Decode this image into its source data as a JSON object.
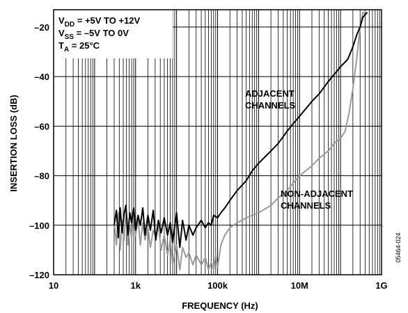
{
  "chart_data": {
    "type": "line",
    "xlabel": "FREQUENCY (Hz)",
    "ylabel": "INSERTION LOSS (dB)",
    "x_scale": "log",
    "xlim": [
      10,
      1000000000
    ],
    "ylim": [
      -120,
      -13
    ],
    "x_ticks": [
      {
        "value": 10,
        "label": "10"
      },
      {
        "value": 1000,
        "label": "1k"
      },
      {
        "value": 100000,
        "label": "100k"
      },
      {
        "value": 10000000,
        "label": "10M"
      },
      {
        "value": 1000000000,
        "label": "1G"
      }
    ],
    "y_ticks": [
      {
        "value": -20,
        "label": "–20"
      },
      {
        "value": -40,
        "label": "–40"
      },
      {
        "value": -60,
        "label": "–60"
      },
      {
        "value": -80,
        "label": "–80"
      },
      {
        "value": -100,
        "label": "–100"
      },
      {
        "value": -120,
        "label": "–120"
      }
    ],
    "grid": true,
    "conditions": [
      {
        "main": "V",
        "sub": "DD",
        "rest": " = +5V TO +12V"
      },
      {
        "main": "V",
        "sub": "SS",
        "rest": " = –5V TO 0V"
      },
      {
        "main": "T",
        "sub": "A",
        "rest": " = 25°C"
      }
    ],
    "figure_id": "05464-024",
    "series": [
      {
        "name": "ADJACENT CHANNELS",
        "color": "#000000",
        "x": [
          300,
          340,
          380,
          420,
          470,
          520,
          580,
          650,
          720,
          800,
          900,
          1000,
          1150,
          1300,
          1500,
          1700,
          2000,
          2300,
          2700,
          3100,
          3600,
          4200,
          5000,
          6000,
          7000,
          8000,
          10000,
          12000,
          14000,
          17000,
          20000,
          25000,
          30000,
          40000,
          50000,
          60000,
          70000,
          80000,
          100000,
          120000,
          150000,
          200000,
          300000,
          500000,
          700000,
          1000000,
          2000000,
          3000000,
          5000000,
          7000000,
          10000000,
          20000000,
          30000000,
          50000000,
          80000000,
          100000000,
          150000000,
          200000000,
          250000000,
          300000000,
          350000000,
          400000000,
          450000000
        ],
        "y": [
          -100,
          -94,
          -105,
          -93,
          -103,
          -96,
          -92,
          -104,
          -95,
          -99,
          -93,
          -102,
          -96,
          -100,
          -93,
          -104,
          -96,
          -102,
          -94,
          -106,
          -98,
          -103,
          -97,
          -104,
          -99,
          -107,
          -95,
          -109,
          -98,
          -106,
          -100,
          -104,
          -101,
          -98,
          -101,
          -99,
          -100,
          -96,
          -97,
          -95,
          -93,
          -90,
          -86,
          -82,
          -78,
          -75,
          -70,
          -67,
          -62,
          -59,
          -56,
          -50,
          -47,
          -42,
          -38,
          -36,
          -33,
          -28,
          -23,
          -20,
          -16,
          -15,
          -14
        ]
      },
      {
        "name": "NON-ADJACENT CHANNELS",
        "color": "#9a9a9a",
        "x": [
          300,
          340,
          380,
          420,
          470,
          520,
          580,
          650,
          720,
          800,
          900,
          1000,
          1150,
          1300,
          1500,
          1700,
          2000,
          2300,
          2700,
          3100,
          3600,
          4200,
          5000,
          6000,
          7000,
          8000,
          10000,
          12000,
          14000,
          17000,
          20000,
          25000,
          30000,
          40000,
          50000,
          60000,
          70000,
          80000,
          90000,
          100000,
          120000,
          150000,
          200000,
          250000,
          300000,
          400000,
          500000,
          700000,
          1000000,
          2000000,
          3000000,
          5000000,
          7000000,
          10000000,
          20000000,
          30000000,
          50000000,
          70000000,
          100000000,
          130000000,
          160000000,
          200000000,
          250000000,
          300000000,
          350000000,
          400000000
        ],
        "y": [
          -98,
          -108,
          -95,
          -110,
          -98,
          -106,
          -96,
          -108,
          -100,
          -105,
          -95,
          -104,
          -97,
          -108,
          -99,
          -106,
          -101,
          -109,
          -102,
          -105,
          -100,
          -110,
          -104,
          -112,
          -106,
          -116,
          -108,
          -118,
          -109,
          -113,
          -111,
          -116,
          -112,
          -116,
          -113,
          -118,
          -115,
          -118,
          -112,
          -117,
          -108,
          -104,
          -101,
          -100,
          -99,
          -98,
          -97,
          -96,
          -95,
          -92,
          -89,
          -86,
          -83,
          -80,
          -76,
          -73,
          -70,
          -67,
          -65,
          -62,
          -55,
          -45,
          -32,
          -20,
          -14,
          -15
        ]
      }
    ],
    "annotations": [
      {
        "lines": [
          "ADJACENT",
          "CHANNELS"
        ]
      },
      {
        "lines": [
          "NON-ADJACENT",
          "CHANNELS"
        ]
      }
    ]
  }
}
